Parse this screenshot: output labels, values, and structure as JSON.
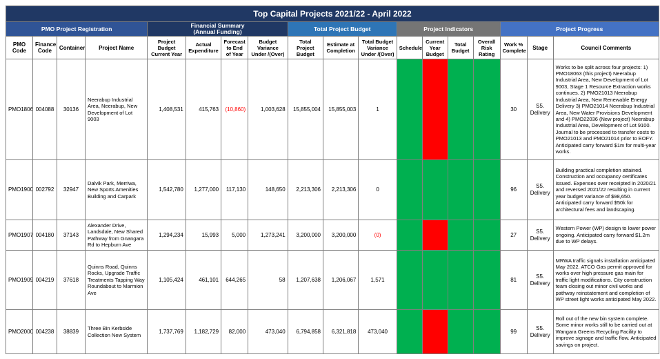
{
  "title": "Top Capital Projects 2021/22 - April 2022",
  "groups": {
    "registration": "PMO Project Registration",
    "financial": "Financial Summary\n(Annual Funding)",
    "budget": "Total Project Budget",
    "indicators": "Project Indicators",
    "progress": "Project Progress"
  },
  "columns": {
    "pmo_code": "PMO Code",
    "finance_code": "Finance Code",
    "container": "Container",
    "project_name": "Project Name",
    "project_budget": "Project Budget Current Year",
    "actual_expenditure": "Actual Expenditure",
    "forecast": "Forecast to End of Year",
    "budget_variance": "Budget Variance Under /(Over)",
    "total_project_budget": "Total Project Budget",
    "estimate_completion": "Estimate at Completion",
    "total_budget_variance": "Total Budget Variance Under /(Over)",
    "schedule": "Schedule",
    "current_year_budget": "Current Year Budget",
    "total_budget": "Total Budget",
    "overall_risk": "Overall Risk Rating",
    "work_complete": "Work % Complete",
    "stage": "Stage",
    "council_comments": "Council Comments"
  },
  "colors": {
    "green": "#00b050",
    "red": "#ff0000",
    "title_bg": "#203864"
  },
  "rows": [
    {
      "pmo_code": "PMO18063",
      "finance_code": "004088",
      "container": "30136",
      "project_name": "Neerabup Industrial Area, Neerabup, New Development of Lot 9003",
      "project_budget": "1,408,531",
      "actual_expenditure": "415,763",
      "forecast": "(10,860)",
      "budget_variance": "1,003,628",
      "total_project_budget": "15,855,004",
      "estimate_completion": "15,855,003",
      "total_budget_variance": "1",
      "schedule": "green",
      "current_year_budget": "red",
      "total_budget": "green",
      "overall_risk": "green",
      "work_complete": "30",
      "stage": "S5. Delivery",
      "comment": "Works to be split across four projects: 1) PMO18063 (this project) Neerabup Industrial Area, New Development of Lot 9003, Stage 1 Resource Extraction works continues.  2) PMO21013 Neerabup Industrial Area, New Renewable Energy Delivery 3) PMO21014 Neerabup Industrial Area, New Water Provisions Development and 4) PMO22036 (New project) Neerabup Industrial Area, Development of Lot 9100. Journal to be processed to transfer costs to PMO21013 and PMO21014 prior to EOFY. Anticipated carry forward $1m for multi-year works."
    },
    {
      "pmo_code": "PMO19001",
      "finance_code": "002792",
      "container": "32947",
      "project_name": "Dalvik Park, Merriwa, New Sports Amenities Building and Carpark",
      "project_budget": "1,542,780",
      "actual_expenditure": "1,277,000",
      "forecast": "117,130",
      "budget_variance": "148,650",
      "total_project_budget": "2,213,306",
      "estimate_completion": "2,213,306",
      "total_budget_variance": "0",
      "schedule": "green",
      "current_year_budget": "green",
      "total_budget": "green",
      "overall_risk": "green",
      "work_complete": "96",
      "stage": "S5. Delivery",
      "comment": "Building practical completion attained. Construction and occupancy certificates issued. Expenses over receipted in 2020/21 and reversed 2021/22 resulting in current year budget variance of $98,650. Anticipated carry forward $50k for architectural fees and landscaping."
    },
    {
      "pmo_code": "PMO19071",
      "finance_code": "004180",
      "container": "37143",
      "project_name": "Alexander Drive, Landsdale, New Shared Pathway from Gnangara Rd to Hepburn Ave",
      "project_budget": "1,294,234",
      "actual_expenditure": "15,993",
      "forecast": "5,000",
      "budget_variance": "1,273,241",
      "total_project_budget": "3,200,000",
      "estimate_completion": "3,200,000",
      "total_budget_variance": "(0)",
      "schedule": "green",
      "current_year_budget": "red",
      "total_budget": "green",
      "overall_risk": "green",
      "work_complete": "27",
      "stage": "S5. Delivery",
      "comment": "Western Power (WP) design to lower power ongoing. Anticipated carry forward $1.2m due to WP delays."
    },
    {
      "pmo_code": "PMO19098",
      "finance_code": "004219",
      "container": "37618",
      "project_name": "Quinns Road, Quinns Rocks, Upgrade Traffic Treatments Tapping Way Roundabout to Marmion Ave",
      "project_budget": "1,105,424",
      "actual_expenditure": "461,101",
      "forecast": "644,265",
      "budget_variance": "58",
      "total_project_budget": "1,207,638",
      "estimate_completion": "1,206,067",
      "total_budget_variance": "1,571",
      "schedule": "green",
      "current_year_budget": "green",
      "total_budget": "green",
      "overall_risk": "green",
      "work_complete": "81",
      "stage": "S5. Delivery",
      "comment": "MRWA traffic signals installation anticipated May 2022.  ATCO Gas permit approved for works over high pressure gas main for traffic light modifications. City construction team closing out minor civil works and pathway reinstatement and completion of WP street light works anticipated May 2022."
    },
    {
      "pmo_code": "PMO20004",
      "finance_code": "004238",
      "container": "38839",
      "project_name": "Three Bin Kerbside Collection New System",
      "project_budget": "1,737,769",
      "actual_expenditure": "1,182,729",
      "forecast": "82,000",
      "budget_variance": "473,040",
      "total_project_budget": "6,794,858",
      "estimate_completion": "6,321,818",
      "total_budget_variance": "473,040",
      "schedule": "green",
      "current_year_budget": "red",
      "total_budget": "green",
      "overall_risk": "green",
      "work_complete": "99",
      "stage": "S5. Delivery",
      "comment": "Roll out of the new bin system complete. Some minor works still to be carried out at Wangara Greens Recycling Facility to improve signage and traffic flow. Anticipated savings on project."
    }
  ]
}
